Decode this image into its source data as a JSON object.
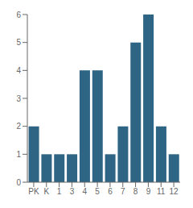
{
  "chart_data": {
    "type": "bar",
    "categories": [
      "PK",
      "K",
      "1",
      "3",
      "4",
      "5",
      "6",
      "7",
      "8",
      "9",
      "11",
      "12"
    ],
    "values": [
      2,
      1,
      1,
      1,
      4,
      4,
      1,
      2,
      5,
      6,
      2,
      1
    ],
    "color": "#2e6484",
    "ylim": [
      0,
      6
    ],
    "yticks": [
      0,
      1,
      2,
      3,
      4,
      5,
      6
    ],
    "grid": false
  }
}
